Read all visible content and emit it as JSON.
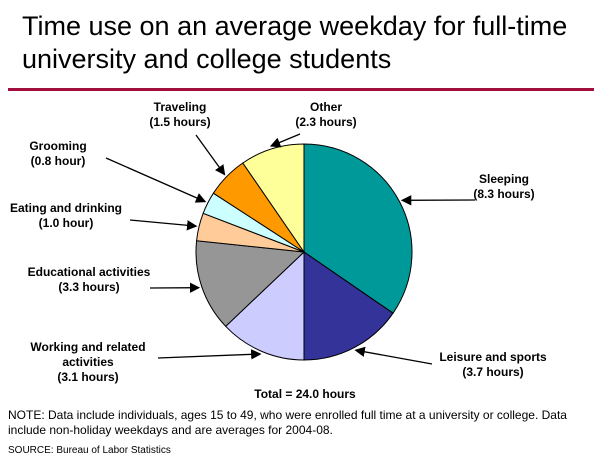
{
  "header": {
    "title_line1": "Time use on an average weekday for full-time",
    "title_line2": "university and college students",
    "rule_color": "#a30f3c"
  },
  "chart_data": {
    "type": "pie",
    "unit": "hours",
    "total_label": "Total = 24.0 hours",
    "slices": [
      {
        "name": "Sleeping",
        "value": 8.3,
        "value_label": "(8.3 hours)",
        "color": "#009999"
      },
      {
        "name": "Leisure and sports",
        "value": 3.7,
        "value_label": "(3.7 hours)",
        "color": "#333399"
      },
      {
        "name": "Working and related activities",
        "name_line1": "Working and related",
        "name_line2": "activities",
        "value": 3.1,
        "value_label": "(3.1 hours)",
        "color": "#ccccff"
      },
      {
        "name": "Educational activities",
        "value": 3.3,
        "value_label": "(3.3 hours)",
        "color": "#969696"
      },
      {
        "name": "Eating and drinking",
        "value": 1.0,
        "value_label": "(1.0 hour)",
        "color": "#ffcc99"
      },
      {
        "name": "Grooming",
        "value": 0.8,
        "value_label": "(0.8 hour)",
        "color": "#ccffff"
      },
      {
        "name": "Traveling",
        "value": 1.5,
        "value_label": "(1.5 hours)",
        "color": "#ff9900"
      },
      {
        "name": "Other",
        "value": 2.3,
        "value_label": "(2.3 hours)",
        "color": "#ffff99"
      }
    ]
  },
  "footer": {
    "note": "NOTE: Data include individuals, ages 15 to 49, who were enrolled full time at a university or college. Data include non-holiday weekdays and are averages for 2004-08.",
    "source": "SOURCE: Bureau of Labor Statistics"
  }
}
